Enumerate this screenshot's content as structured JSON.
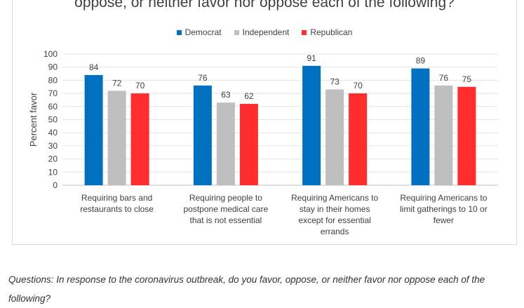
{
  "chart_data": {
    "type": "bar",
    "title": "oppose, or neither favor nor oppose each of the following?",
    "ylabel": "Percent favor",
    "xlabel": "",
    "ylim": [
      0,
      100
    ],
    "yticks": [
      0,
      10,
      20,
      30,
      40,
      50,
      60,
      70,
      80,
      90,
      100
    ],
    "grid": true,
    "legend_position": "top",
    "categories": [
      [
        "Requiring bars and",
        "restaurants to close"
      ],
      [
        "Requiring people to",
        "postpone medical care",
        "that is not essential"
      ],
      [
        "Requiring Americans to",
        "stay in their homes",
        "except for essential",
        "errands"
      ],
      [
        "Requiring Americans to",
        "limit gatherings to 10 or",
        "fewer"
      ]
    ],
    "series": [
      {
        "name": "Democrat",
        "color": "#0070c0",
        "values": [
          84,
          76,
          91,
          89
        ]
      },
      {
        "name": "Independent",
        "color": "#bfbfbf",
        "values": [
          72,
          63,
          73,
          76
        ]
      },
      {
        "name": "Republican",
        "color": "#ff2d2d",
        "values": [
          70,
          62,
          70,
          75
        ]
      }
    ]
  },
  "caption": "Questions: In response to the coronavirus outbreak, do you favor, oppose, or neither favor nor oppose each of the following?"
}
